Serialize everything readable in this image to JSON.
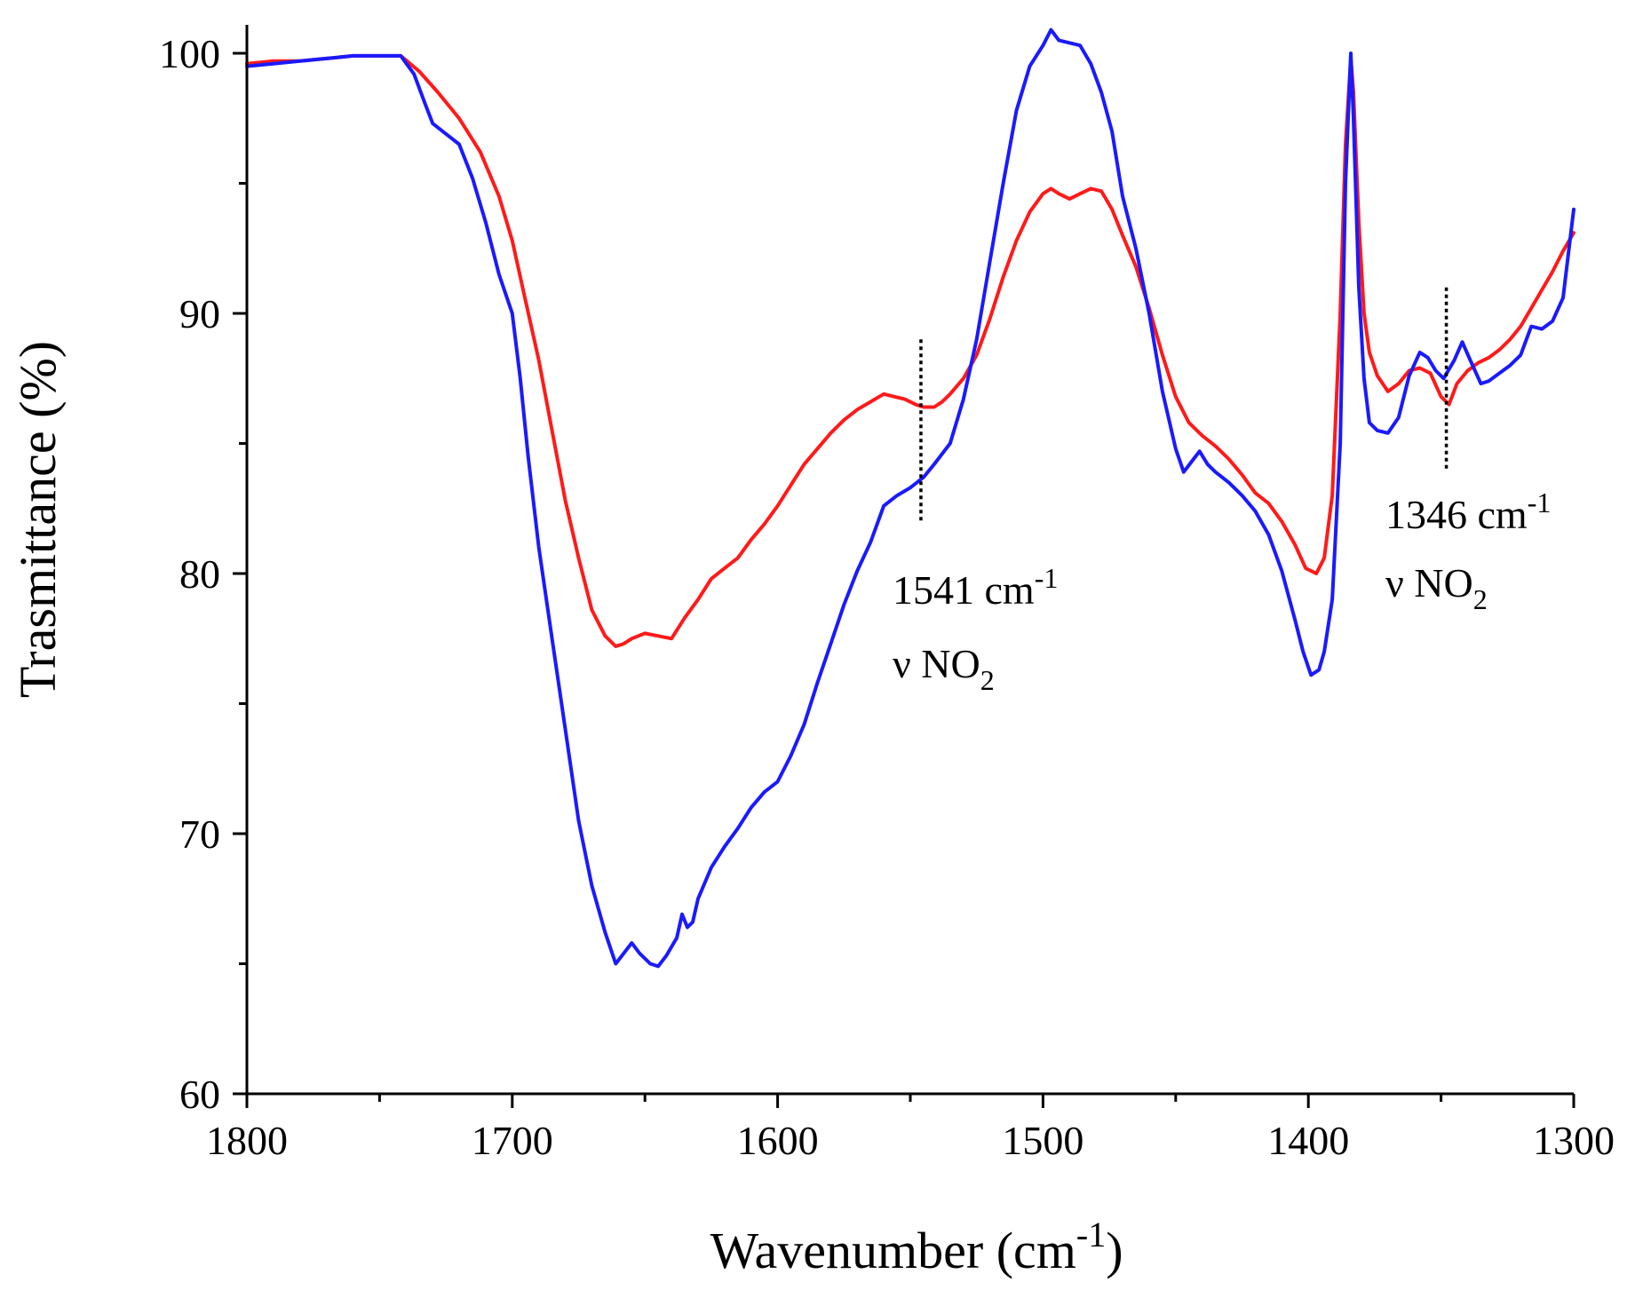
{
  "chart_data": {
    "type": "line",
    "title": "",
    "xlabel": "Wavenumber (cm",
    "xlabel_sup": "-1",
    "xlabel_close": ")",
    "ylabel": "Trasmittance (%)",
    "xlim": [
      1800,
      1300
    ],
    "x_reversed": true,
    "ylim": [
      60,
      101
    ],
    "x_ticks": [
      1800,
      1700,
      1600,
      1500,
      1400,
      1300
    ],
    "x_tick_labels": [
      "1800",
      "1700",
      "1600",
      "1500",
      "1400",
      "1300"
    ],
    "x_minor_ticks": [
      1750,
      1650,
      1550,
      1450,
      1350
    ],
    "y_ticks": [
      60,
      70,
      80,
      90,
      100
    ],
    "y_tick_labels": [
      "60",
      "70",
      "80",
      "90",
      "100"
    ],
    "y_minor_ticks": [
      65,
      75,
      85,
      95
    ],
    "grid": false,
    "legend": null,
    "series": [
      {
        "name": "red",
        "color": "#ff1a1a",
        "x": [
          1800,
          1790,
          1780,
          1770,
          1760,
          1750,
          1742,
          1735,
          1728,
          1720,
          1712,
          1705,
          1700,
          1695,
          1690,
          1685,
          1680,
          1675,
          1670,
          1665,
          1661,
          1658,
          1655,
          1650,
          1645,
          1640,
          1635,
          1630,
          1625,
          1620,
          1615,
          1610,
          1605,
          1600,
          1595,
          1590,
          1585,
          1580,
          1575,
          1570,
          1565,
          1560,
          1556,
          1552,
          1548,
          1545,
          1541,
          1538,
          1535,
          1530,
          1525,
          1520,
          1515,
          1510,
          1505,
          1500,
          1497,
          1494,
          1490,
          1486,
          1482,
          1478,
          1474,
          1470,
          1465,
          1460,
          1455,
          1450,
          1445,
          1440,
          1435,
          1430,
          1425,
          1420,
          1415,
          1410,
          1405,
          1401,
          1397,
          1394,
          1391,
          1388,
          1386,
          1384,
          1383,
          1381,
          1379,
          1377,
          1374,
          1370,
          1366,
          1362,
          1358,
          1354,
          1350,
          1347,
          1344,
          1340,
          1336,
          1332,
          1328,
          1324,
          1320,
          1316,
          1312,
          1308,
          1304,
          1300
        ],
        "y": [
          99.6,
          99.7,
          99.7,
          99.8,
          99.9,
          99.9,
          99.9,
          99.3,
          98.5,
          97.5,
          96.2,
          94.5,
          92.8,
          90.5,
          88.2,
          85.5,
          82.8,
          80.6,
          78.6,
          77.6,
          77.2,
          77.3,
          77.5,
          77.7,
          77.6,
          77.5,
          78.3,
          79.0,
          79.8,
          80.2,
          80.6,
          81.3,
          81.9,
          82.6,
          83.4,
          84.2,
          84.8,
          85.4,
          85.9,
          86.3,
          86.6,
          86.9,
          86.8,
          86.7,
          86.5,
          86.4,
          86.4,
          86.6,
          86.9,
          87.5,
          88.4,
          89.8,
          91.4,
          92.8,
          93.9,
          94.6,
          94.8,
          94.6,
          94.4,
          94.6,
          94.8,
          94.7,
          94.0,
          93.0,
          91.8,
          90.2,
          88.4,
          86.8,
          85.8,
          85.3,
          84.9,
          84.4,
          83.8,
          83.1,
          82.7,
          82.0,
          81.1,
          80.2,
          80.0,
          80.6,
          83.0,
          90.0,
          96.5,
          99.8,
          98.5,
          93.5,
          90.0,
          88.5,
          87.6,
          87.0,
          87.3,
          87.8,
          87.9,
          87.7,
          86.8,
          86.5,
          87.3,
          87.8,
          88.1,
          88.3,
          88.6,
          89.0,
          89.5,
          90.2,
          90.9,
          91.6,
          92.4,
          93.1
        ]
      },
      {
        "name": "blue",
        "color": "#1a1aff",
        "x": [
          1800,
          1790,
          1780,
          1770,
          1760,
          1750,
          1742,
          1737,
          1733,
          1730,
          1725,
          1720,
          1715,
          1710,
          1705,
          1700,
          1697,
          1694,
          1690,
          1685,
          1680,
          1675,
          1670,
          1665,
          1661,
          1658,
          1655,
          1652,
          1648,
          1645,
          1642,
          1638,
          1636,
          1634,
          1632,
          1630,
          1625,
          1620,
          1615,
          1610,
          1605,
          1600,
          1595,
          1590,
          1585,
          1580,
          1575,
          1570,
          1565,
          1560,
          1555,
          1550,
          1545,
          1541,
          1535,
          1530,
          1525,
          1520,
          1515,
          1510,
          1505,
          1500,
          1497,
          1494,
          1490,
          1486,
          1482,
          1478,
          1474,
          1470,
          1465,
          1460,
          1455,
          1450,
          1447,
          1444,
          1441,
          1438,
          1435,
          1430,
          1425,
          1420,
          1415,
          1410,
          1405,
          1402,
          1399,
          1396,
          1394,
          1391,
          1388,
          1386,
          1384,
          1383,
          1381,
          1379,
          1377,
          1374,
          1370,
          1366,
          1362,
          1358,
          1355,
          1352,
          1349,
          1345,
          1342,
          1339,
          1335,
          1332,
          1328,
          1324,
          1320,
          1316,
          1312,
          1308,
          1304,
          1300
        ],
        "y": [
          99.5,
          99.6,
          99.7,
          99.8,
          99.9,
          99.9,
          99.9,
          99.2,
          98.1,
          97.3,
          96.9,
          96.5,
          95.2,
          93.5,
          91.5,
          90.0,
          87.5,
          84.5,
          81.0,
          77.5,
          74.0,
          70.5,
          68.0,
          66.2,
          65.0,
          65.4,
          65.8,
          65.4,
          65.0,
          64.9,
          65.3,
          66.0,
          66.9,
          66.4,
          66.6,
          67.5,
          68.7,
          69.5,
          70.2,
          71.0,
          71.6,
          72.0,
          73.0,
          74.2,
          75.8,
          77.3,
          78.8,
          80.1,
          81.2,
          82.6,
          83.0,
          83.3,
          83.7,
          84.2,
          85.0,
          86.7,
          89.0,
          92.0,
          95.0,
          97.8,
          99.5,
          100.3,
          100.9,
          100.5,
          100.4,
          100.3,
          99.6,
          98.5,
          97.0,
          94.5,
          92.5,
          90.0,
          87.0,
          84.8,
          83.9,
          84.3,
          84.7,
          84.2,
          83.9,
          83.5,
          83.0,
          82.4,
          81.5,
          80.1,
          78.2,
          77.0,
          76.1,
          76.3,
          77.0,
          79.0,
          85.0,
          95.0,
          100.0,
          97.5,
          91.0,
          87.5,
          85.8,
          85.5,
          85.4,
          86.0,
          87.6,
          88.5,
          88.3,
          87.8,
          87.5,
          88.2,
          88.9,
          88.2,
          87.3,
          87.4,
          87.7,
          88.0,
          88.4,
          89.5,
          89.4,
          89.7,
          90.6,
          94.0
        ]
      }
    ],
    "annotations": [
      {
        "x": 1546,
        "y_range": [
          82,
          89
        ],
        "label": "1541 cm",
        "label_sup": "-1",
        "sublabel": "ν NO",
        "sublabel_sub": "2"
      },
      {
        "x": 1348,
        "y_range": [
          84,
          91
        ],
        "label": "1346 cm",
        "label_sup": "-1",
        "sublabel": "ν NO",
        "sublabel_sub": "2"
      }
    ]
  }
}
